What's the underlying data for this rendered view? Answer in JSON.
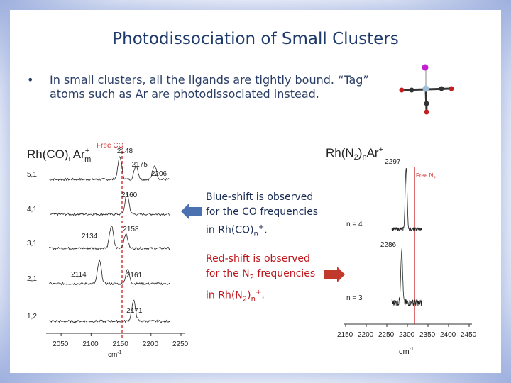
{
  "slide": {
    "title": "Photodissociation of Small Clusters",
    "bullet_marker": "•",
    "bullet_text": "In small clusters, all the ligands are tightly bound. “Tag” atoms such as Ar are photodissociated instead."
  },
  "notes": {
    "blue": {
      "line1": "Blue-shift is observed",
      "line2": "for the CO frequencies",
      "line3_pre": "in Rh(CO)",
      "sub": "n",
      "sup": "+",
      "end": "."
    },
    "red": {
      "line1": "Red-shift is observed",
      "line2_pre": "for the N",
      "line2_sub": "2",
      "line2_post": " frequencies",
      "line3_pre": "in Rh(N",
      "line3_sub": "2",
      "line3_mid": ")",
      "sub": "n",
      "sup": "+",
      "end": "."
    }
  },
  "colors": {
    "arrow_blue": "#4a72b0",
    "arrow_red": "#c0392b",
    "free_line": "#d03030",
    "title": "#1f3b6b"
  },
  "left_spectrum": {
    "label_main": "Rh(CO)",
    "label_sub": "n",
    "label_ar": "Ar",
    "label_sup": "+",
    "label_msub": "m",
    "free_label": "Free CO",
    "free_x": 2143,
    "x_ticks": [
      "2050",
      "2100",
      "2150",
      "2200",
      "2250"
    ],
    "x_unit": "cm",
    "x_unit_sup": "-1",
    "traces": [
      {
        "label": "5,1",
        "peaks": [
          "2148",
          "2175",
          "2206"
        ]
      },
      {
        "label": "4,1",
        "peaks": [
          "2160"
        ]
      },
      {
        "label": "3,1",
        "peaks": [
          "2134",
          "2158"
        ]
      },
      {
        "label": "2,1",
        "peaks": [
          "2114",
          "2161"
        ]
      },
      {
        "label": "1,2",
        "peaks": [
          "2171"
        ]
      }
    ]
  },
  "right_spectrum": {
    "label_main": "Rh(N",
    "label_sub2": "2",
    "label_close": ")",
    "label_sub": "n",
    "label_ar": "Ar",
    "label_sup": "+",
    "free_label": "Free N",
    "free_label_sub": "2",
    "x_ticks": [
      "2150",
      "2200",
      "2250",
      "2300",
      "2350",
      "2400",
      "2450"
    ],
    "x_unit": "cm",
    "x_unit_sup": "-1",
    "traces": [
      {
        "label": "n = 4",
        "peak": "2297"
      },
      {
        "label": "n = 3",
        "peak": "2286"
      }
    ]
  }
}
